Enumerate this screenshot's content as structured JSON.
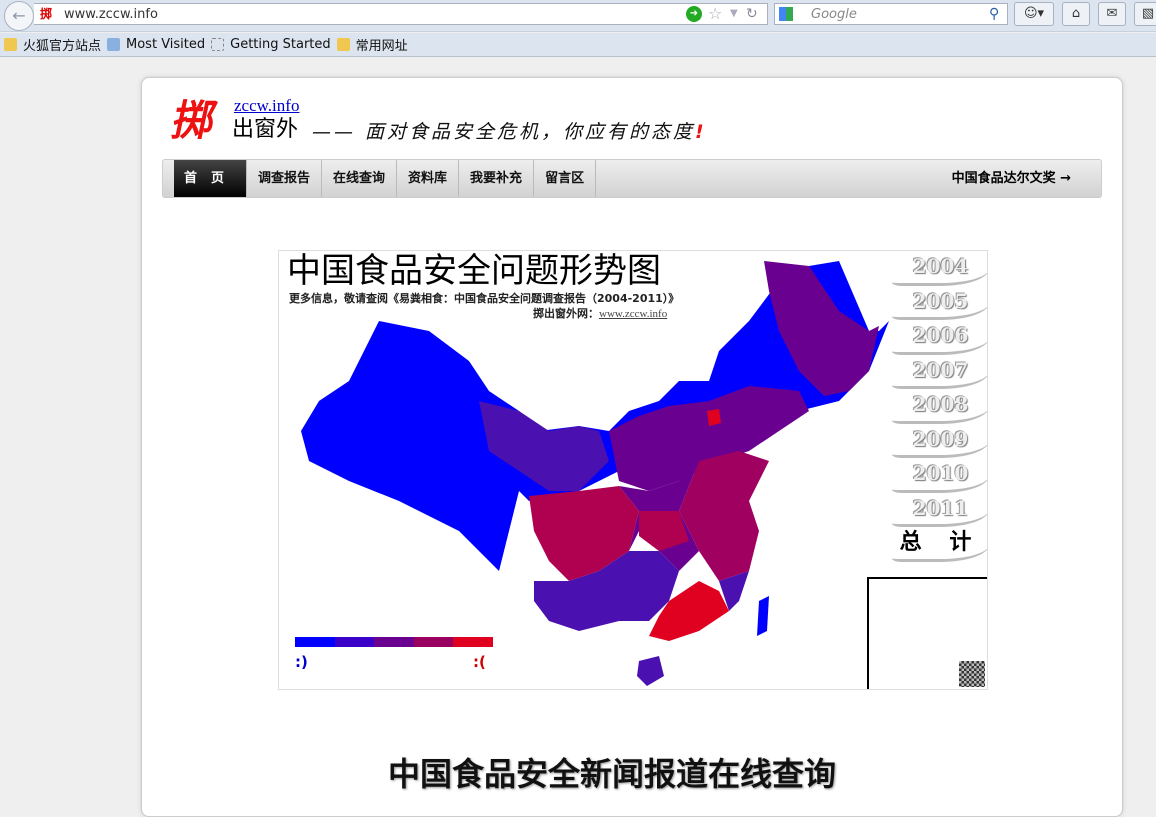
{
  "browser": {
    "url": "www.zccw.info",
    "search_placeholder": "Google",
    "favicon_text": "掷",
    "bookmarks": [
      {
        "label": "火狐官方站点",
        "icon": "folder-icon"
      },
      {
        "label": "Most Visited",
        "icon": "most-visited-icon"
      },
      {
        "label": "Getting Started",
        "icon": "page-icon"
      },
      {
        "label": "常用网址",
        "icon": "folder-icon"
      }
    ]
  },
  "site": {
    "logo_mark": "掷",
    "logo_url": "zccw.info",
    "logo_name": "出窗外",
    "slogan": "—— 面对食品安全危机，你应有的态度",
    "slogan_mark": "!"
  },
  "nav": {
    "items": [
      "首页",
      "调查报告",
      "在线查询",
      "资料库",
      "我要补充",
      "留言区"
    ],
    "right": "中国食品达尔文奖 →"
  },
  "map": {
    "title": "中国食品安全问题形势图",
    "subtitle": "更多信息，敬请查阅《易粪相食：中国食品安全问题调查报告（2004-2011）》",
    "credit_label": "掷出窗外网：",
    "credit_url": "www.zccw.info",
    "years": [
      "2004",
      "2005",
      "2006",
      "2007",
      "2008",
      "2009",
      "2010",
      "2011"
    ],
    "total": "总 计",
    "legend_colors": [
      "#0000ff",
      "#3a00c8",
      "#6a0090",
      "#9a0060",
      "#e00020"
    ],
    "legend_low": ":)",
    "legend_high": ":("
  },
  "section_title": "中国食品安全新闻报道在线查询"
}
